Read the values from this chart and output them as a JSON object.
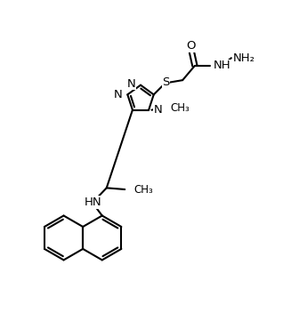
{
  "bg_color": "#ffffff",
  "line_color": "#000000",
  "line_width": 1.5,
  "font_size": 9.5,
  "figsize": [
    3.36,
    3.52
  ],
  "dpi": 100,
  "xlim": [
    0,
    10
  ],
  "ylim": [
    0,
    10.5
  ]
}
